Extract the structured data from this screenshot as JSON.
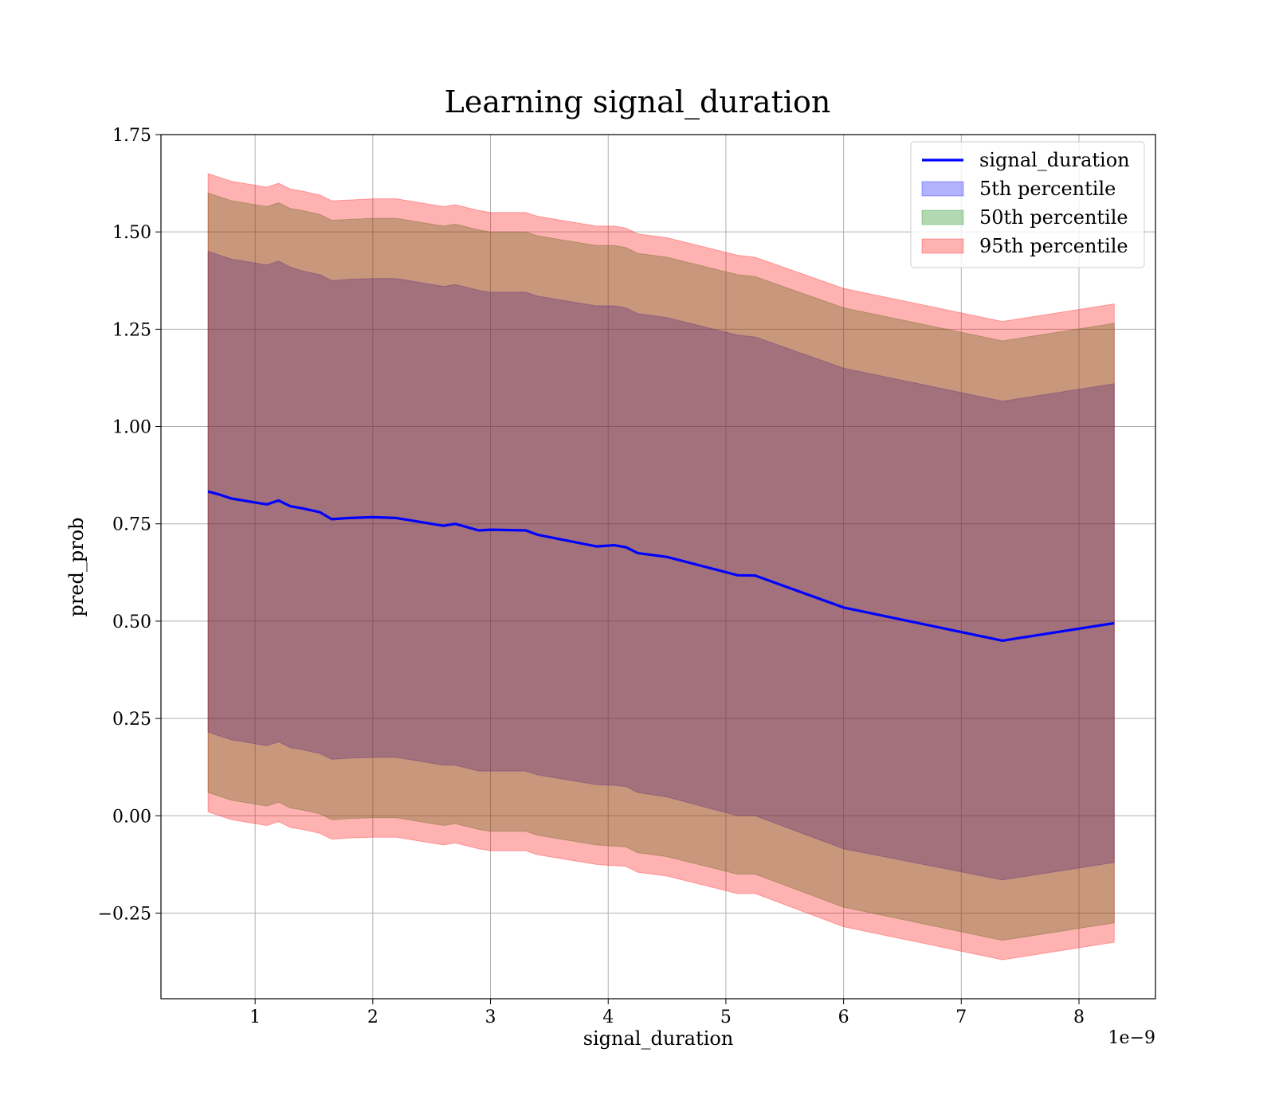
{
  "chart_data": {
    "type": "area",
    "title": "Learning signal_duration",
    "xlabel": "signal_duration",
    "ylabel": "pred_prob",
    "x_offset_text": "1e−9",
    "x_scale_exponent": -9,
    "xlim": [
      2e-10,
      8.65e-09
    ],
    "ylim": [
      -0.47,
      1.75
    ],
    "x_ticks": [
      1e-09,
      2e-09,
      3e-09,
      4e-09,
      5e-09,
      6e-09,
      7e-09,
      8e-09
    ],
    "x_tick_labels": [
      "1",
      "2",
      "3",
      "4",
      "5",
      "6",
      "7",
      "8"
    ],
    "y_ticks": [
      -0.25,
      0.0,
      0.25,
      0.5,
      0.75,
      1.0,
      1.25,
      1.5,
      1.75
    ],
    "y_tick_labels": [
      "−0.25",
      "0.00",
      "0.25",
      "0.50",
      "0.75",
      "1.00",
      "1.25",
      "1.50",
      "1.75"
    ],
    "grid": true,
    "legend_position": "top-right",
    "legend": [
      {
        "label": "signal_duration",
        "kind": "line",
        "color": "#0000ff"
      },
      {
        "label": "5th percentile",
        "kind": "patch",
        "color": "#0000ff"
      },
      {
        "label": "50th percentile",
        "kind": "patch",
        "color": "#008000"
      },
      {
        "label": "95th percentile",
        "kind": "patch",
        "color": "#ff0000"
      }
    ],
    "x": [
      6e-10,
      7e-10,
      8e-10,
      9e-10,
      1e-09,
      1.1e-09,
      1.2e-09,
      1.3e-09,
      1.4e-09,
      1.55e-09,
      1.65e-09,
      1.8e-09,
      2e-09,
      2.2e-09,
      2.4e-09,
      2.6e-09,
      2.7e-09,
      2.9e-09,
      3e-09,
      3.3e-09,
      3.4e-09,
      3.6e-09,
      3.9e-09,
      4.05e-09,
      4.15e-09,
      4.25e-09,
      4.5e-09,
      5.1e-09,
      5.25e-09,
      6e-09,
      7.35e-09,
      8.3e-09
    ],
    "series": [
      {
        "name": "signal_duration",
        "color": "#0000ff",
        "values": [
          0.833,
          0.825,
          0.815,
          0.81,
          0.805,
          0.8,
          0.81,
          0.795,
          0.79,
          0.78,
          0.762,
          0.765,
          0.767,
          0.765,
          0.755,
          0.745,
          0.75,
          0.733,
          0.735,
          0.733,
          0.722,
          0.71,
          0.692,
          0.695,
          0.69,
          0.675,
          0.665,
          0.618,
          0.617,
          0.535,
          0.45,
          0.495
        ]
      },
      {
        "name": "5th percentile",
        "color": "#0000ff",
        "upper": [
          1.45,
          1.44,
          1.43,
          1.425,
          1.42,
          1.415,
          1.425,
          1.41,
          1.4,
          1.39,
          1.375,
          1.378,
          1.38,
          1.38,
          1.37,
          1.36,
          1.365,
          1.35,
          1.345,
          1.345,
          1.335,
          1.325,
          1.31,
          1.31,
          1.305,
          1.29,
          1.28,
          1.235,
          1.23,
          1.15,
          1.065,
          1.11
        ],
        "lower": [
          0.215,
          0.205,
          0.195,
          0.19,
          0.185,
          0.18,
          0.19,
          0.175,
          0.17,
          0.16,
          0.145,
          0.148,
          0.15,
          0.15,
          0.14,
          0.13,
          0.13,
          0.115,
          0.115,
          0.115,
          0.105,
          0.095,
          0.08,
          0.078,
          0.075,
          0.06,
          0.048,
          0.0,
          0.0,
          -0.085,
          -0.165,
          -0.12
        ]
      },
      {
        "name": "50th percentile",
        "color": "#008000",
        "upper": [
          1.6,
          1.59,
          1.58,
          1.575,
          1.57,
          1.565,
          1.575,
          1.56,
          1.555,
          1.545,
          1.53,
          1.532,
          1.535,
          1.535,
          1.525,
          1.515,
          1.52,
          1.505,
          1.5,
          1.5,
          1.49,
          1.48,
          1.465,
          1.465,
          1.46,
          1.445,
          1.435,
          1.39,
          1.385,
          1.305,
          1.22,
          1.265
        ],
        "lower": [
          0.06,
          0.05,
          0.04,
          0.035,
          0.03,
          0.025,
          0.035,
          0.02,
          0.015,
          0.005,
          -0.01,
          -0.007,
          -0.005,
          -0.005,
          -0.015,
          -0.025,
          -0.02,
          -0.035,
          -0.04,
          -0.04,
          -0.05,
          -0.06,
          -0.075,
          -0.078,
          -0.08,
          -0.095,
          -0.105,
          -0.15,
          -0.15,
          -0.235,
          -0.32,
          -0.275
        ]
      },
      {
        "name": "95th percentile",
        "color": "#ff0000",
        "upper": [
          1.65,
          1.64,
          1.63,
          1.625,
          1.62,
          1.615,
          1.625,
          1.61,
          1.605,
          1.595,
          1.58,
          1.582,
          1.585,
          1.585,
          1.575,
          1.565,
          1.57,
          1.555,
          1.55,
          1.55,
          1.54,
          1.53,
          1.515,
          1.515,
          1.51,
          1.495,
          1.485,
          1.44,
          1.435,
          1.355,
          1.27,
          1.315
        ],
        "lower": [
          0.01,
          0.0,
          -0.01,
          -0.015,
          -0.02,
          -0.025,
          -0.015,
          -0.03,
          -0.035,
          -0.045,
          -0.06,
          -0.057,
          -0.055,
          -0.055,
          -0.065,
          -0.075,
          -0.07,
          -0.085,
          -0.09,
          -0.09,
          -0.1,
          -0.11,
          -0.125,
          -0.128,
          -0.13,
          -0.145,
          -0.155,
          -0.2,
          -0.2,
          -0.285,
          -0.37,
          -0.325
        ]
      }
    ]
  }
}
